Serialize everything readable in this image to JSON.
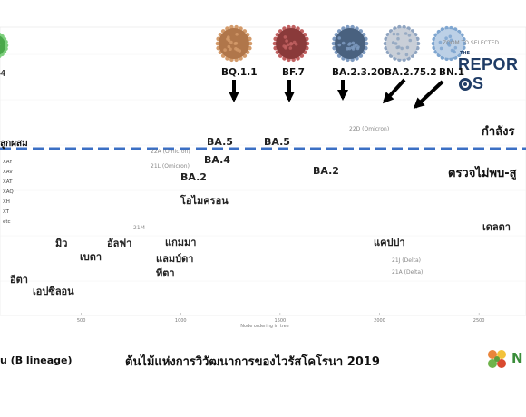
{
  "brand": {
    "the": "THE",
    "name_start": "REPOR",
    "name_end": "S"
  },
  "caption": "ต้นไม้แห่งการวิวัฒนาการของไวรัสโคโรนา 2019",
  "footer_left": "u (B lineage)",
  "footer_right": "N",
  "threshold_labels": {
    "above": "กำลังร",
    "below": "ตรวจไม่พบ-สู"
  },
  "top_left_fragment": "4",
  "left_fragment": "ลูกผสม",
  "recombinant_list": [
    "XAY",
    "XAV",
    "XAT",
    "XAQ",
    "XH",
    "XT",
    "etc"
  ],
  "variant_labels": {
    "omicron": "โอไมครอน",
    "gamma": "แกมมา",
    "lambda": "แลมบ์ดา",
    "theta": "ทีตา",
    "mu": "มิว",
    "beta": "เบตา",
    "alpha": "อัลฟา",
    "iota": "อีตา",
    "epsilon": "เอปซิลอน",
    "kappa": "แคปปา",
    "delta": "เดลตา",
    "ba5_a": "BA.5",
    "ba5_b": "BA.5",
    "ba4": "BA.4",
    "ba2_mid": "BA.2",
    "ba2_left": "BA.2"
  },
  "virus_labels": [
    "BQ.1.1",
    "BF.7",
    "BA.2.3.20",
    "BA.2.75.2",
    "BN.1"
  ],
  "small_clade_labels": [
    "22A (Omicron)",
    "22B (Omicron)",
    "21L (Omicron)",
    "21M",
    "21J (Delta)",
    "21A (Delta)",
    "22D (Omicron)"
  ],
  "axis_title": "Node ordering in tree",
  "zoom_hint": "ZOOM TO SELECTED",
  "chart_data": {
    "type": "scatter",
    "title": "ต้นไม้แห่งการวิวัฒนาการของไวรัสโคโรนา 2019",
    "xlabel": "Node ordering in tree",
    "x_ticks": [
      500,
      1000,
      1500,
      2000,
      2500
    ],
    "xlim": [
      0,
      2700
    ],
    "series": [
      {
        "name": "BQ.1.1",
        "color": "#e8701e"
      },
      {
        "name": "BF.7",
        "color": "#f08a2a"
      },
      {
        "name": "BA.2.3.20",
        "color": "#f0c020"
      },
      {
        "name": "BA.2.75.2",
        "color": "#d71a1a"
      },
      {
        "name": "BA.5",
        "color": "#e8701e"
      },
      {
        "name": "BA.4",
        "color": "#f3a83b"
      },
      {
        "name": "BA.2",
        "color": "#f2c428"
      },
      {
        "name": "Delta",
        "color": "#4a78d0"
      },
      {
        "name": "Kappa",
        "color": "#3355c8"
      },
      {
        "name": "Alpha",
        "color": "#6a3fc0"
      },
      {
        "name": "Gamma",
        "color": "#3a4fb8"
      },
      {
        "name": "Mu",
        "color": "#c9c23a"
      },
      {
        "name": "Beta",
        "color": "#7fbf3a"
      },
      {
        "name": "Lambda",
        "color": "#9a9a9a"
      },
      {
        "name": "Epsilon",
        "color": "#a6a6a6"
      }
    ],
    "threshold": {
      "style": "dashed",
      "color": "#3b6fc4"
    }
  },
  "colors": {
    "threshold_line": "#3b6fc4",
    "branch": "#b9b9b9",
    "branch_tan": "#c9a27a",
    "arrow": "#000000"
  }
}
